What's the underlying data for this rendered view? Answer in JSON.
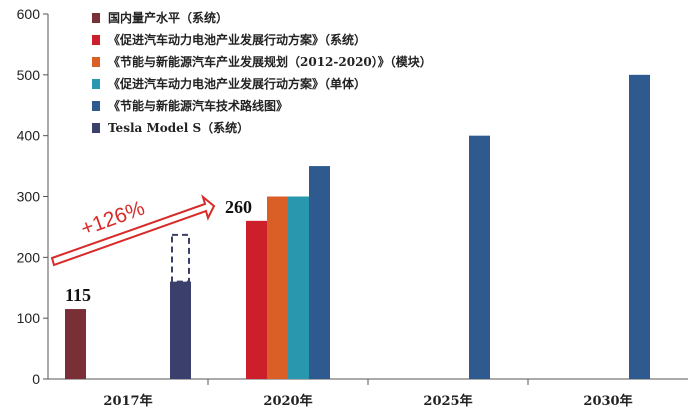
{
  "chart_data": {
    "type": "bar",
    "title": "",
    "xlabel": "",
    "ylabel": "",
    "ylim": [
      0,
      600
    ],
    "yticks": [
      0,
      100,
      200,
      300,
      400,
      500,
      600
    ],
    "categories": [
      "2017年",
      "2020年",
      "2025年",
      "2030年"
    ],
    "grid": false,
    "legend_position": "top-left",
    "series": [
      {
        "name": "国内量产水平（系统）",
        "color": "#7a2f36",
        "values": [
          115,
          null,
          null,
          null
        ]
      },
      {
        "name": "《促进汽车动力电池产业发展行动方案》（系统）",
        "color": "#cc1f2b",
        "values": [
          null,
          260,
          null,
          null
        ]
      },
      {
        "name": "《节能与新能源汽车产业发展规划（2012-2020）》（模块）",
        "color": "#d95f27",
        "values": [
          null,
          300,
          null,
          null
        ]
      },
      {
        "name": "《促进汽车动力电池产业发展行动方案》（单体）",
        "color": "#2997ad",
        "values": [
          null,
          300,
          null,
          null
        ]
      },
      {
        "name": "《节能与新能源汽车技术路线图》",
        "color": "#2f5a8f",
        "values": [
          null,
          350,
          400,
          500
        ]
      },
      {
        "name": "Tesla Model S（系统）",
        "color": "#3a3f6b",
        "values": [
          160,
          null,
          null,
          null
        ]
      }
    ],
    "tesla_range_upper": 237,
    "data_labels": [
      {
        "text": "115",
        "category": "2017年",
        "value": 115
      },
      {
        "text": "260",
        "category": "2020年",
        "value": 260
      }
    ],
    "annotation": {
      "text": "+126%",
      "color": "#d92a2a"
    }
  }
}
